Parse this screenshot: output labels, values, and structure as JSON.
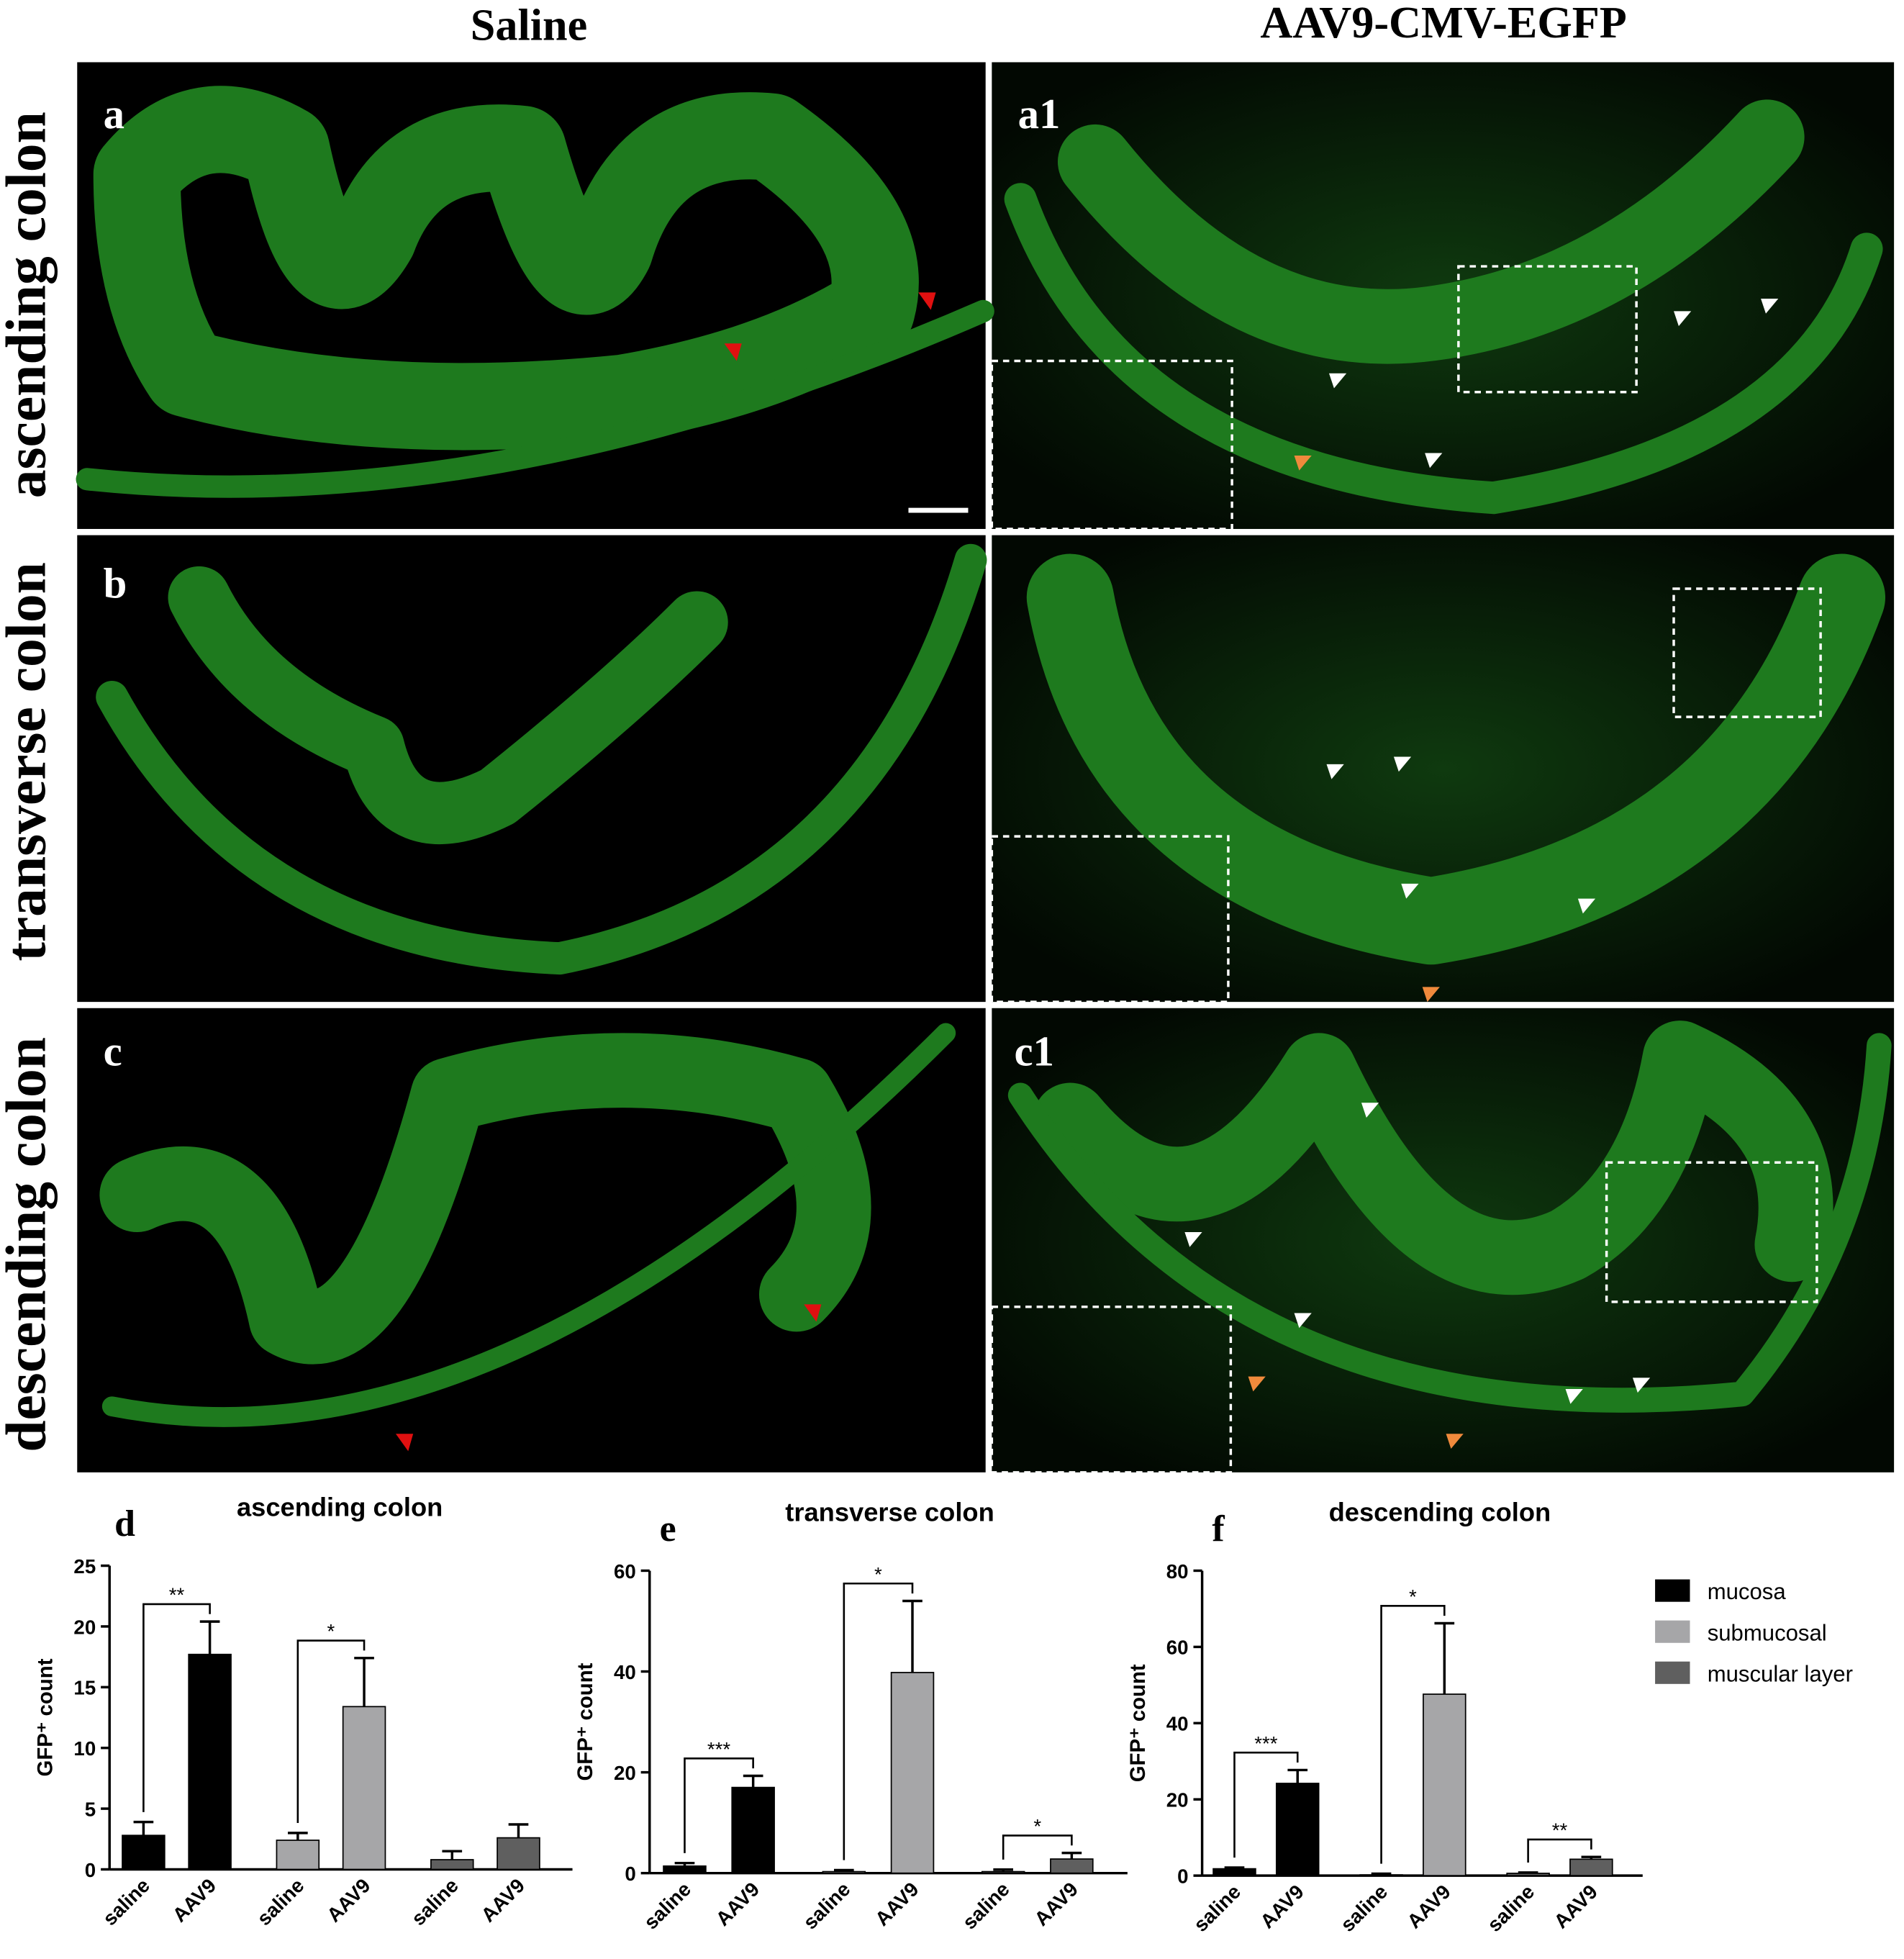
{
  "figure": {
    "column_headers": [
      "Saline",
      "AAV9-CMV-EGFP"
    ],
    "row_labels": [
      "ascending colon",
      "transverse colon",
      "descending colon"
    ],
    "panel_labels": [
      "a",
      "a1",
      "b",
      "c",
      "c1"
    ]
  },
  "chart_data": [
    {
      "type": "bar",
      "panel": "d",
      "title": "ascending colon",
      "ylabel": "GFP⁺ count",
      "categories": [
        "saline",
        "AAV9"
      ],
      "ylim": [
        0,
        25
      ],
      "yticks": [
        0,
        5,
        10,
        15,
        20,
        25
      ],
      "series": [
        {
          "color": "#000000",
          "values": [
            2.8,
            17.7
          ],
          "errors": [
            1.1,
            2.7
          ],
          "significance": "**"
        },
        {
          "color": "#a6a6a8",
          "values": [
            2.4,
            13.4
          ],
          "errors": [
            0.6,
            4.0
          ],
          "significance": "*"
        },
        {
          "color": "#5f5f5f",
          "values": [
            0.8,
            2.6
          ],
          "errors": [
            0.7,
            1.1
          ]
        }
      ]
    },
    {
      "type": "bar",
      "panel": "e",
      "title": "transverse colon",
      "ylabel": "GFP⁺ count",
      "categories": [
        "saline",
        "AAV9"
      ],
      "ylim": [
        0,
        60
      ],
      "yticks": [
        0,
        20,
        40,
        60
      ],
      "series": [
        {
          "color": "#000000",
          "values": [
            1.4,
            17.0
          ],
          "errors": [
            0.6,
            2.3
          ],
          "significance": "***"
        },
        {
          "color": "#a6a6a8",
          "values": [
            0.3,
            39.8
          ],
          "errors": [
            0.3,
            14.2
          ],
          "significance": "*"
        },
        {
          "color": "#5f5f5f",
          "values": [
            0.3,
            2.8
          ],
          "errors": [
            0.4,
            1.2
          ],
          "significance": "*"
        }
      ]
    },
    {
      "type": "bar",
      "panel": "f",
      "title": "descending colon",
      "ylabel": "GFP⁺ count",
      "categories": [
        "saline",
        "AAV9"
      ],
      "ylim": [
        0,
        80
      ],
      "yticks": [
        0,
        20,
        40,
        60,
        80
      ],
      "series": [
        {
          "name": "mucosa",
          "color": "#000000",
          "values": [
            1.8,
            24.2
          ],
          "errors": [
            0.3,
            3.5
          ],
          "significance": "***"
        },
        {
          "name": "submucosal",
          "color": "#a6a6a8",
          "values": [
            0.2,
            47.6
          ],
          "errors": [
            0.3,
            18.6
          ],
          "significance": "*"
        },
        {
          "name": "muscular layer",
          "color": "#5f5f5f",
          "values": [
            0.6,
            4.3
          ],
          "errors": [
            0.2,
            0.6
          ],
          "significance": "**"
        }
      ]
    }
  ]
}
